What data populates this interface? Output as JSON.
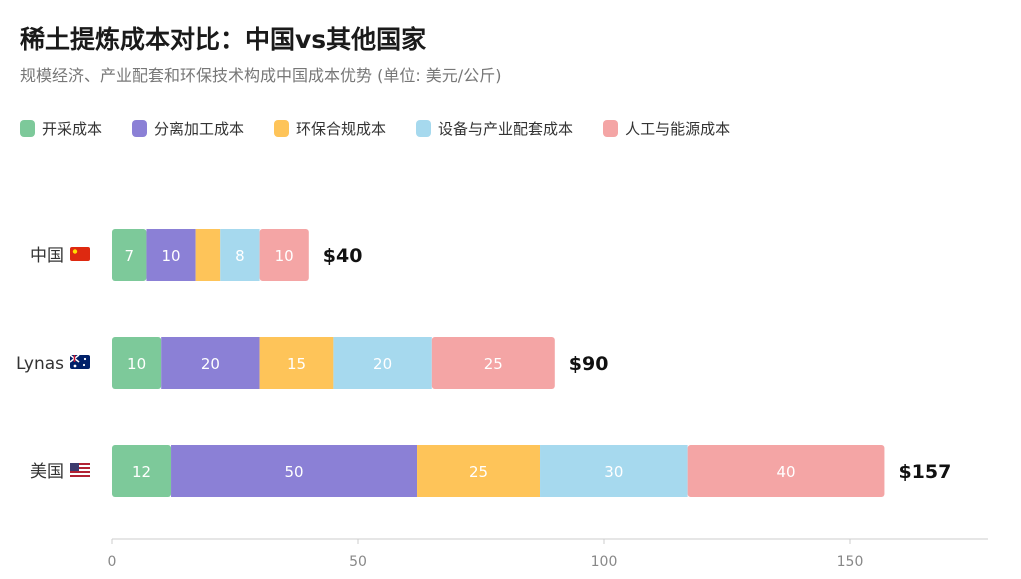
{
  "chart_data": {
    "type": "bar",
    "orientation": "horizontal",
    "stacked": true,
    "title": "稀土提炼成本对比：中国vs其他国家",
    "subtitle": "规模经济、产业配套和环保技术构成中国成本优势 (单位: 美元/公斤)",
    "categories": [
      "中国",
      "Lynas",
      "美国"
    ],
    "category_flags": [
      "china-flag",
      "australia-flag",
      "usa-flag"
    ],
    "series": [
      {
        "name": "开采成本",
        "color": "#7DC99A",
        "values": [
          7,
          10,
          12
        ]
      },
      {
        "name": "分离加工成本",
        "color": "#8B80D6",
        "values": [
          10,
          20,
          50
        ]
      },
      {
        "name": "环保合规成本",
        "color": "#FEC459",
        "values": [
          5,
          15,
          25
        ]
      },
      {
        "name": "设备与产业配套成本",
        "color": "#A6D9EE",
        "values": [
          8,
          20,
          30
        ]
      },
      {
        "name": "人工与能源成本",
        "color": "#F4A5A5",
        "values": [
          10,
          25,
          40
        ]
      }
    ],
    "totals": [
      "$40",
      "$90",
      "$157"
    ],
    "xlim": [
      0,
      178
    ],
    "xticks": [
      0,
      50,
      100,
      150
    ],
    "legend": "top-left",
    "grid": false
  }
}
